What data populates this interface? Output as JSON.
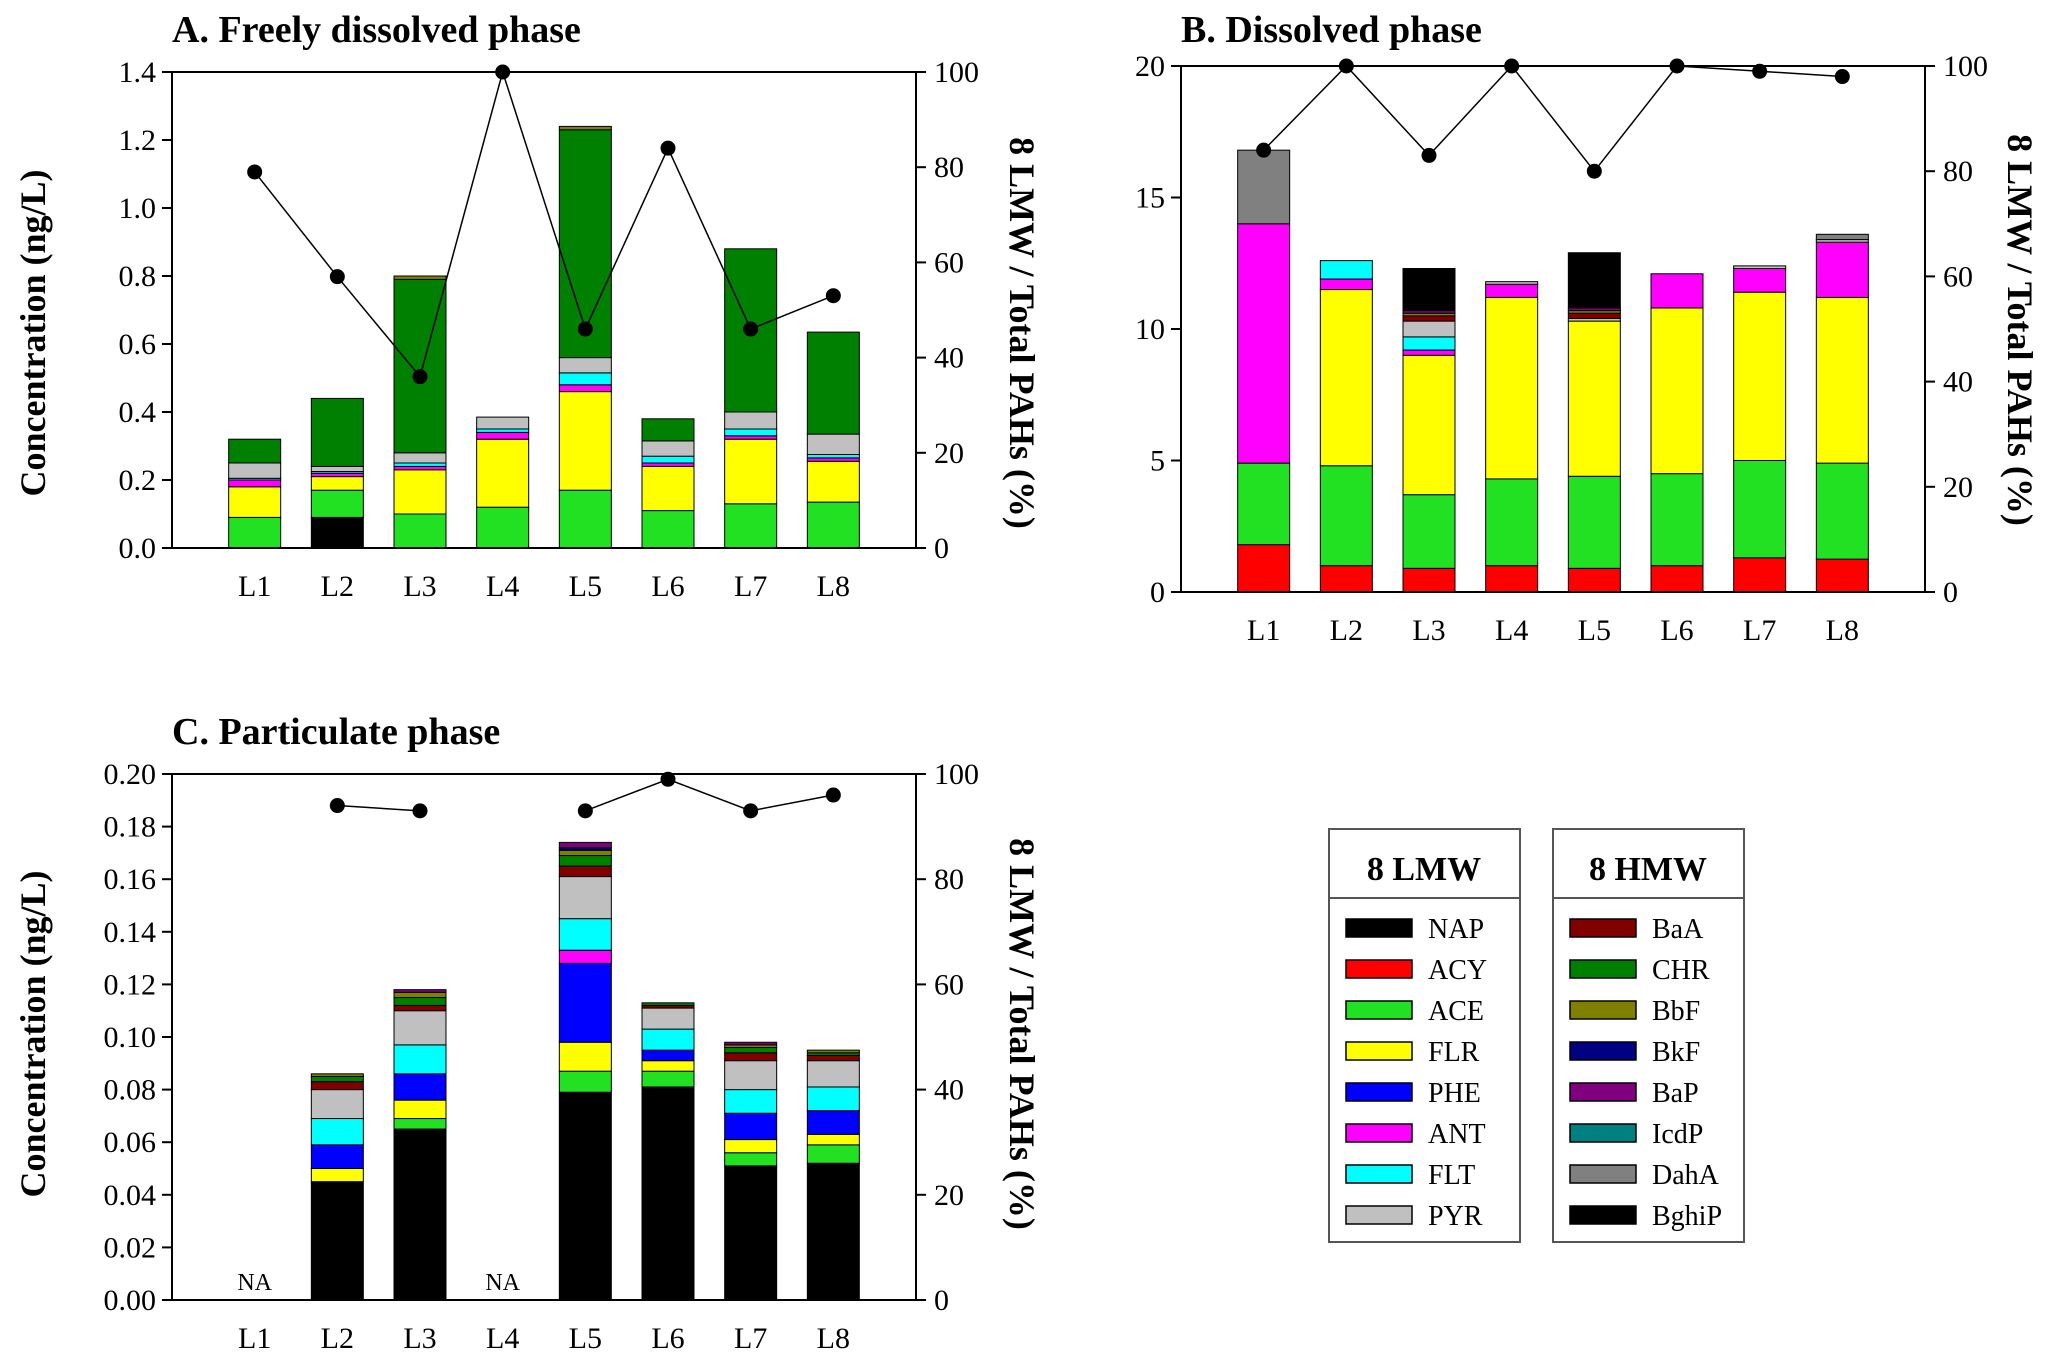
{
  "compounds": {
    "NAP": "#000000",
    "ACY": "#ff0000",
    "ACE": "#22e022",
    "FLR": "#ffff00",
    "PHE": "#0000ff",
    "ANT": "#ff00ff",
    "FLT": "#00ffff",
    "PYR": "#c0c0c0",
    "BaA": "#800000",
    "CHR": "#008000",
    "BbF": "#808000",
    "BkF": "#000080",
    "BaP": "#800080",
    "IcdP": "#008080",
    "DahA": "#808080",
    "BghiP": "#000000"
  },
  "legend": {
    "lmw_title": "8 LMW",
    "hmw_title": "8 HMW",
    "lmw": [
      "NAP",
      "ACY",
      "ACE",
      "FLR",
      "PHE",
      "ANT",
      "FLT",
      "PYR"
    ],
    "hmw": [
      "BaA",
      "CHR",
      "BbF",
      "BkF",
      "BaP",
      "IcdP",
      "DahA",
      "BghiP"
    ]
  },
  "chart_data": [
    {
      "type": "bar",
      "stacked": true,
      "title": "A. Freely dissolved phase",
      "xlabel": "",
      "ylabel": "Concentration (ng/L)",
      "y2label": "8 LMW / Total PAHs (%)",
      "categories": [
        "L1",
        "L2",
        "L3",
        "L4",
        "L5",
        "L6",
        "L7",
        "L8"
      ],
      "ylim": [
        0,
        1.4
      ],
      "yticks": [
        "0.0",
        "0.2",
        "0.4",
        "0.6",
        "0.8",
        "1.0",
        "1.2",
        "1.4"
      ],
      "y2lim": [
        0,
        100
      ],
      "y2ticks": [
        "0",
        "20",
        "40",
        "60",
        "80",
        "100"
      ],
      "na_labels": [],
      "series": [
        {
          "name": "NAP",
          "values": [
            0,
            0.09,
            0,
            0,
            0,
            0,
            0,
            0
          ]
        },
        {
          "name": "ACY",
          "values": [
            0,
            0,
            0,
            0,
            0,
            0,
            0,
            0
          ]
        },
        {
          "name": "ACE",
          "values": [
            0.09,
            0.08,
            0.1,
            0.12,
            0.17,
            0.11,
            0.13,
            0.135
          ]
        },
        {
          "name": "FLR",
          "values": [
            0.09,
            0.04,
            0.13,
            0.2,
            0.29,
            0.13,
            0.19,
            0.12
          ]
        },
        {
          "name": "PHE",
          "values": [
            0,
            0,
            0,
            0,
            0,
            0,
            0,
            0
          ]
        },
        {
          "name": "ANT",
          "values": [
            0.02,
            0.01,
            0.01,
            0.02,
            0.02,
            0.01,
            0.01,
            0.01
          ]
        },
        {
          "name": "FLT",
          "values": [
            0.005,
            0.005,
            0.01,
            0.01,
            0.035,
            0.02,
            0.02,
            0.01
          ]
        },
        {
          "name": "PYR",
          "values": [
            0.045,
            0.015,
            0.03,
            0.035,
            0.045,
            0.045,
            0.05,
            0.06
          ]
        },
        {
          "name": "BaA",
          "values": [
            0,
            0,
            0,
            0,
            0,
            0,
            0,
            0
          ]
        },
        {
          "name": "CHR",
          "values": [
            0.07,
            0.2,
            0.51,
            0,
            0.67,
            0.065,
            0.48,
            0.3
          ]
        },
        {
          "name": "BbF",
          "values": [
            0,
            0,
            0.01,
            0,
            0.01,
            0,
            0,
            0
          ]
        },
        {
          "name": "BkF",
          "values": [
            0,
            0,
            0,
            0,
            0,
            0,
            0,
            0
          ]
        },
        {
          "name": "BaP",
          "values": [
            0,
            0,
            0,
            0,
            0,
            0,
            0,
            0
          ]
        },
        {
          "name": "IcdP",
          "values": [
            0,
            0,
            0,
            0,
            0,
            0,
            0,
            0
          ]
        },
        {
          "name": "DahA",
          "values": [
            0,
            0,
            0,
            0,
            0,
            0,
            0,
            0
          ]
        },
        {
          "name": "BghiP",
          "values": [
            0,
            0,
            0,
            0,
            0,
            0,
            0,
            0
          ]
        }
      ],
      "lmw_ratio": [
        79,
        57,
        36,
        100,
        46,
        84,
        46,
        53
      ]
    },
    {
      "type": "bar",
      "stacked": true,
      "title": "B. Dissolved phase",
      "xlabel": "",
      "ylabel": "",
      "y2label": "8 LMW / Total PAHs (%)",
      "categories": [
        "L1",
        "L2",
        "L3",
        "L4",
        "L5",
        "L6",
        "L7",
        "L8"
      ],
      "ylim": [
        0,
        20
      ],
      "yticks": [
        "0",
        "5",
        "10",
        "15",
        "20"
      ],
      "y2lim": [
        0,
        100
      ],
      "y2ticks": [
        "0",
        "20",
        "40",
        "60",
        "80",
        "100"
      ],
      "na_labels": [],
      "series": [
        {
          "name": "NAP",
          "values": [
            0,
            0,
            0,
            0,
            0,
            0,
            0,
            0
          ]
        },
        {
          "name": "ACY",
          "values": [
            1.8,
            1.0,
            0.9,
            1.0,
            0.9,
            1.0,
            1.3,
            1.25
          ]
        },
        {
          "name": "ACE",
          "values": [
            3.1,
            3.8,
            2.8,
            3.3,
            3.5,
            3.5,
            3.7,
            3.65
          ]
        },
        {
          "name": "FLR",
          "values": [
            0,
            6.7,
            5.3,
            6.9,
            5.9,
            6.3,
            6.4,
            6.3
          ]
        },
        {
          "name": "PHE",
          "values": [
            0,
            0,
            0,
            0,
            0,
            0,
            0,
            0
          ]
        },
        {
          "name": "ANT",
          "values": [
            9.1,
            0.4,
            0.2,
            0.5,
            0,
            1.3,
            0.9,
            2.1
          ]
        },
        {
          "name": "FLT",
          "values": [
            0,
            0.7,
            0.5,
            0,
            0,
            0,
            0,
            0
          ]
        },
        {
          "name": "PYR",
          "values": [
            0,
            0,
            0.6,
            0.1,
            0.1,
            0,
            0.1,
            0.1
          ]
        },
        {
          "name": "BaA",
          "values": [
            0,
            0,
            0.2,
            0,
            0.2,
            0,
            0,
            0
          ]
        },
        {
          "name": "CHR",
          "values": [
            0,
            0,
            0,
            0,
            0,
            0,
            0,
            0
          ]
        },
        {
          "name": "BbF",
          "values": [
            0,
            0,
            0.1,
            0,
            0.1,
            0,
            0,
            0
          ]
        },
        {
          "name": "BkF",
          "values": [
            0,
            0,
            0,
            0,
            0,
            0,
            0,
            0
          ]
        },
        {
          "name": "BaP",
          "values": [
            0,
            0,
            0.1,
            0,
            0.1,
            0,
            0,
            0
          ]
        },
        {
          "name": "IcdP",
          "values": [
            0,
            0,
            0,
            0,
            0,
            0,
            0,
            0
          ]
        },
        {
          "name": "DahA",
          "values": [
            2.8,
            0,
            0,
            0,
            0,
            0,
            0,
            0.2
          ]
        },
        {
          "name": "BghiP",
          "values": [
            0,
            0,
            1.6,
            0,
            2.1,
            0,
            0,
            0
          ]
        }
      ],
      "lmw_ratio": [
        84,
        100,
        83,
        100,
        80,
        100,
        99,
        98
      ]
    },
    {
      "type": "bar",
      "stacked": true,
      "title": "C. Particulate phase",
      "xlabel": "",
      "ylabel": "Concentration (ng/L)",
      "y2label": "8 LMW / Total PAHs (%)",
      "categories": [
        "L1",
        "L2",
        "L3",
        "L4",
        "L5",
        "L6",
        "L7",
        "L8"
      ],
      "ylim": [
        0,
        0.2
      ],
      "yticks": [
        "0.00",
        "0.02",
        "0.04",
        "0.06",
        "0.08",
        "0.10",
        "0.12",
        "0.14",
        "0.16",
        "0.18",
        "0.20"
      ],
      "y2lim": [
        0,
        100
      ],
      "y2ticks": [
        "0",
        "20",
        "40",
        "60",
        "80",
        "100"
      ],
      "na_labels": [
        "NA",
        "",
        "",
        "NA",
        "",
        "",
        "",
        ""
      ],
      "series": [
        {
          "name": "NAP",
          "values": [
            0,
            0.045,
            0.065,
            0,
            0.079,
            0.081,
            0.051,
            0.052
          ]
        },
        {
          "name": "ACY",
          "values": [
            0,
            0,
            0,
            0,
            0,
            0,
            0,
            0
          ]
        },
        {
          "name": "ACE",
          "values": [
            0,
            0,
            0.004,
            0,
            0.008,
            0.006,
            0.005,
            0.007
          ]
        },
        {
          "name": "FLR",
          "values": [
            0,
            0.005,
            0.007,
            0,
            0.011,
            0.004,
            0.005,
            0.004
          ]
        },
        {
          "name": "PHE",
          "values": [
            0,
            0.009,
            0.01,
            0,
            0.03,
            0.004,
            0.01,
            0.009
          ]
        },
        {
          "name": "ANT",
          "values": [
            0,
            0,
            0,
            0,
            0.005,
            0,
            0,
            0
          ]
        },
        {
          "name": "FLT",
          "values": [
            0,
            0.01,
            0.011,
            0,
            0.012,
            0.008,
            0.009,
            0.009
          ]
        },
        {
          "name": "PYR",
          "values": [
            0,
            0.011,
            0.013,
            0,
            0.016,
            0.008,
            0.011,
            0.01
          ]
        },
        {
          "name": "BaA",
          "values": [
            0,
            0.003,
            0.002,
            0,
            0.004,
            0.001,
            0.003,
            0.002
          ]
        },
        {
          "name": "CHR",
          "values": [
            0,
            0.002,
            0.003,
            0,
            0.004,
            0.001,
            0.002,
            0.001
          ]
        },
        {
          "name": "BbF",
          "values": [
            0,
            0.001,
            0.002,
            0,
            0.002,
            0,
            0.001,
            0.001
          ]
        },
        {
          "name": "BkF",
          "values": [
            0,
            0,
            0,
            0,
            0.001,
            0,
            0,
            0
          ]
        },
        {
          "name": "BaP",
          "values": [
            0,
            0,
            0.001,
            0,
            0.002,
            0,
            0.001,
            0
          ]
        },
        {
          "name": "IcdP",
          "values": [
            0,
            0,
            0,
            0,
            0,
            0,
            0,
            0
          ]
        },
        {
          "name": "DahA",
          "values": [
            0,
            0,
            0,
            0,
            0,
            0,
            0,
            0
          ]
        },
        {
          "name": "BghiP",
          "values": [
            0,
            0,
            0,
            0,
            0,
            0,
            0,
            0
          ]
        }
      ],
      "lmw_ratio": [
        null,
        94,
        93,
        null,
        93,
        99,
        93,
        96
      ]
    }
  ]
}
